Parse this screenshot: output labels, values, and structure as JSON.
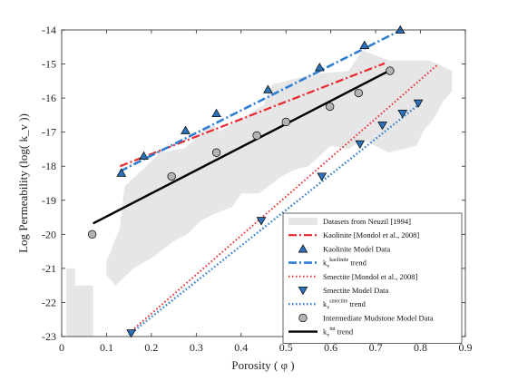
{
  "chart_data": {
    "type": "scatter",
    "xlabel": "Porosity ( φ )",
    "ylabel": "Log Permeability (log( k_v ))",
    "xlim": [
      0,
      0.9
    ],
    "ylim": [
      -23,
      -14
    ],
    "xticks": [
      "0",
      "0.1",
      "0.2",
      "0.3",
      "0.4",
      "0.5",
      "0.6",
      "0.7",
      "0.8",
      "0.9"
    ],
    "yticks": [
      "-14",
      "-15",
      "-16",
      "-17",
      "-18",
      "-19",
      "-20",
      "-21",
      "-22",
      "-23"
    ],
    "grid": false,
    "legend_position": "bottom-right",
    "region": {
      "name": "Datasets from Neuzil [1994]",
      "color": "#e6e6e6",
      "polygon": [
        [
          0.1,
          -20.8
        ],
        [
          0.13,
          -19.8
        ],
        [
          0.14,
          -18.6
        ],
        [
          0.18,
          -18.1
        ],
        [
          0.22,
          -17.6
        ],
        [
          0.3,
          -17.4
        ],
        [
          0.4,
          -16.6
        ],
        [
          0.45,
          -16.2
        ],
        [
          0.47,
          -15.6
        ],
        [
          0.56,
          -15.3
        ],
        [
          0.64,
          -15.2
        ],
        [
          0.67,
          -14.6
        ],
        [
          0.73,
          -14.9
        ],
        [
          0.82,
          -14.9
        ],
        [
          0.87,
          -15.2
        ],
        [
          0.87,
          -15.8
        ],
        [
          0.85,
          -16.1
        ],
        [
          0.83,
          -16.6
        ],
        [
          0.81,
          -16.9
        ],
        [
          0.79,
          -17.4
        ],
        [
          0.73,
          -17.6
        ],
        [
          0.67,
          -17.2
        ],
        [
          0.64,
          -17.5
        ],
        [
          0.6,
          -17.4
        ],
        [
          0.55,
          -18.0
        ],
        [
          0.52,
          -18.1
        ],
        [
          0.49,
          -18.3
        ],
        [
          0.44,
          -18.8
        ],
        [
          0.4,
          -18.8
        ],
        [
          0.38,
          -19.2
        ],
        [
          0.34,
          -19.4
        ],
        [
          0.31,
          -19.6
        ],
        [
          0.28,
          -20.0
        ],
        [
          0.25,
          -20.2
        ],
        [
          0.22,
          -20.5
        ],
        [
          0.2,
          -20.7
        ],
        [
          0.16,
          -21.0
        ],
        [
          0.12,
          -21.5
        ],
        [
          0.1,
          -21.2
        ]
      ],
      "extras": [
        [
          [
            0.01,
            -23
          ],
          [
            0.03,
            -23
          ],
          [
            0.03,
            -21.5
          ],
          [
            0.07,
            -21.5
          ],
          [
            0.07,
            -23
          ],
          [
            0.03,
            -23
          ],
          [
            0.03,
            -21.0
          ],
          [
            0.01,
            -21.0
          ]
        ],
        [
          [
            0.21,
            -18.0
          ],
          [
            0.26,
            -17.6
          ],
          [
            0.29,
            -17.3
          ],
          [
            0.31,
            -17.0
          ],
          [
            0.34,
            -16.8
          ],
          [
            0.36,
            -17.1
          ],
          [
            0.32,
            -17.5
          ],
          [
            0.28,
            -17.9
          ],
          [
            0.24,
            -18.2
          ]
        ]
      ]
    },
    "series": [
      {
        "name": "Kaolinite [Mondol et al., 2008]",
        "kind": "line",
        "color": "#e8282f",
        "dash": "9,3,2,3",
        "width": 2.2,
        "x": [
          0.13,
          0.72
        ],
        "y": [
          -18.0,
          -14.98
        ]
      },
      {
        "name": "Kaolinite Model Data",
        "kind": "marker",
        "marker": "triangle-up",
        "color": "#2d72b8",
        "x": [
          0.133,
          0.183,
          0.276,
          0.345,
          0.46,
          0.575,
          0.675,
          0.755
        ],
        "y": [
          -18.2,
          -17.7,
          -16.95,
          -16.45,
          -15.75,
          -15.1,
          -14.45,
          -14.0
        ]
      },
      {
        "name": "k_v^kaolinite trend",
        "name_parts": [
          "k",
          "v",
          "kaolinite",
          "trend"
        ],
        "kind": "line",
        "color": "#2f7fd0",
        "dash": "9,3,2,3",
        "width": 2.6,
        "x": [
          0.13,
          0.76
        ],
        "y": [
          -18.15,
          -13.98
        ]
      },
      {
        "name": "Smectite [Mondol et al., 2008]",
        "kind": "line",
        "color": "#e8282f",
        "dash": "1.5,2.5",
        "width": 2.0,
        "x": [
          0.15,
          0.84
        ],
        "y": [
          -22.9,
          -15.0
        ]
      },
      {
        "name": "Smectite Model Data",
        "kind": "marker",
        "marker": "triangle-down",
        "color": "#2d72b8",
        "x": [
          0.155,
          0.445,
          0.58,
          0.665,
          0.715,
          0.76,
          0.795
        ],
        "y": [
          -22.9,
          -19.6,
          -18.3,
          -17.35,
          -16.8,
          -16.45,
          -16.15
        ]
      },
      {
        "name": "k_v^smectite trend",
        "name_parts": [
          "k",
          "v",
          "smectite",
          "trend"
        ],
        "kind": "line",
        "color": "#2f7fd0",
        "dash": "1.5,2.5",
        "width": 2.4,
        "x": [
          0.15,
          0.8
        ],
        "y": [
          -22.95,
          -16.15
        ]
      },
      {
        "name": "Intermediate Mudstone Model Data",
        "kind": "marker",
        "marker": "circle",
        "color": "#b4b4b4",
        "x": [
          0.068,
          0.245,
          0.345,
          0.435,
          0.5,
          0.598,
          0.662,
          0.732
        ],
        "y": [
          -20.0,
          -18.3,
          -17.6,
          -17.1,
          -16.7,
          -16.25,
          -15.85,
          -15.2
        ]
      },
      {
        "name": "k_v^int trend",
        "name_parts": [
          "k",
          "v",
          "int",
          "trend"
        ],
        "kind": "line",
        "color": "#000000",
        "dash": "",
        "width": 2.4,
        "x": [
          0.07,
          0.73
        ],
        "y": [
          -19.68,
          -15.2
        ]
      }
    ]
  }
}
